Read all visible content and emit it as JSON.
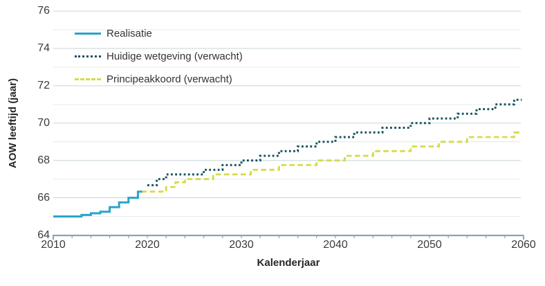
{
  "page": {
    "background": "#ffffff"
  },
  "chart_data": {
    "type": "line",
    "subtype": "step",
    "title": "",
    "xlabel": "Kalenderjaar",
    "ylabel": "AOW leeftijd (jaar)",
    "xlim": [
      2010,
      2060
    ],
    "ylim": [
      64,
      76
    ],
    "x_major_ticks": [
      "2010",
      "2020",
      "2030",
      "2040",
      "2050",
      "2060"
    ],
    "x_major_tick_years": [
      2010,
      2020,
      2030,
      2040,
      2050,
      2060
    ],
    "x_minor_tick_step_years": 2,
    "y_ticks": [
      "64",
      "66",
      "68",
      "70",
      "72",
      "74",
      "76"
    ],
    "y_tick_values": [
      64,
      66,
      68,
      70,
      72,
      74,
      76
    ],
    "grid": "horizontal",
    "legend_position": "top-left-inside",
    "colors": {
      "realisatie": "#29a4c8",
      "huidige_wetgeving": "#15525f",
      "principeakkoord": "#d5db48",
      "axis": "#87a6b0",
      "grid_major": "#c7d5da",
      "grid_minor": "#e4ecee",
      "tick_text": "#3a3a3a",
      "label_text": "#272727"
    },
    "series": [
      {
        "name": "Realisatie",
        "style": "solid",
        "color": "#29a4c8",
        "start_year": 2010,
        "end": 2019.45,
        "lead_in": 0,
        "values": [
          65,
          65,
          65,
          65.08,
          65.17,
          65.25,
          65.5,
          65.75,
          66,
          66.33
        ]
      },
      {
        "name": "Huidige wetgeving (verwacht)",
        "style": "dotted",
        "color": "#15525f",
        "start_year": 2020,
        "end": 2059.8,
        "lead_in": 0,
        "values": [
          66.67,
          67,
          67.25,
          67.25,
          67.25,
          67.25,
          67.5,
          67.5,
          67.75,
          67.75,
          68,
          68,
          68.25,
          68.25,
          68.5,
          68.5,
          68.75,
          68.75,
          69,
          69,
          69.25,
          69.25,
          69.5,
          69.5,
          69.5,
          69.75,
          69.75,
          69.75,
          70,
          70,
          70.25,
          70.25,
          70.25,
          70.5,
          70.5,
          70.75,
          70.75,
          71,
          71,
          71.25,
          71.25
        ]
      },
      {
        "name": "Principeakkoord (verwacht)",
        "style": "dashed",
        "color": "#d5db48",
        "start_year": 2020,
        "end": 2059.8,
        "lead_in": 0.6,
        "values": [
          66.33,
          66.33,
          66.58,
          66.83,
          67,
          67,
          67,
          67.25,
          67.25,
          67.25,
          67.25,
          67.5,
          67.5,
          67.5,
          67.75,
          67.75,
          67.75,
          67.75,
          68,
          68,
          68,
          68.25,
          68.25,
          68.25,
          68.5,
          68.5,
          68.5,
          68.5,
          68.75,
          68.75,
          68.75,
          69,
          69,
          69,
          69.25,
          69.25,
          69.25,
          69.25,
          69.25,
          69.5,
          69.5
        ]
      }
    ]
  }
}
